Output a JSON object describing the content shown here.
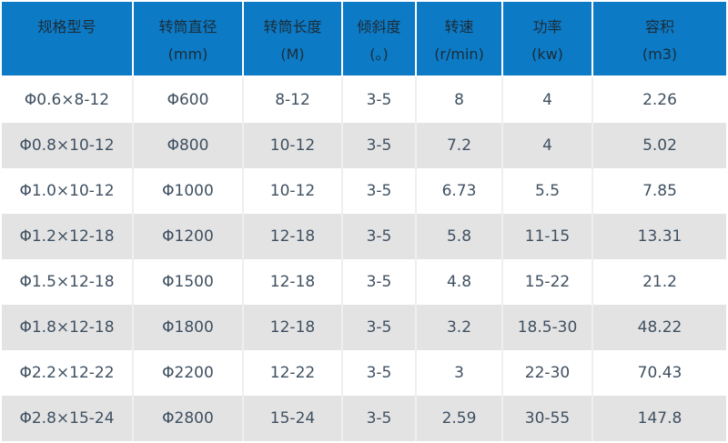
{
  "chart_data": {
    "type": "table",
    "columns": [
      {
        "label": "规格型号",
        "unit": ""
      },
      {
        "label": "转筒直径",
        "unit": "(mm)"
      },
      {
        "label": "转筒长度",
        "unit": "(M)"
      },
      {
        "label": "倾斜度",
        "unit": "(。)"
      },
      {
        "label": "转速",
        "unit": "(r/min)"
      },
      {
        "label": "功率",
        "unit": "(kw)"
      },
      {
        "label": "容积",
        "unit": "(m3)"
      }
    ],
    "rows": [
      [
        "Φ0.6×8-12",
        "Φ600",
        "8-12",
        "3-5",
        "8",
        "4",
        "2.26"
      ],
      [
        "Φ0.8×10-12",
        "Φ800",
        "10-12",
        "3-5",
        "7.2",
        "4",
        "5.02"
      ],
      [
        "Φ1.0×10-12",
        "Φ1000",
        "10-12",
        "3-5",
        "6.73",
        "5.5",
        "7.85"
      ],
      [
        "Φ1.2×12-18",
        "Φ1200",
        "12-18",
        "3-5",
        "5.8",
        "11-15",
        "13.31"
      ],
      [
        "Φ1.5×12-18",
        "Φ1500",
        "12-18",
        "3-5",
        "4.8",
        "15-22",
        "21.2"
      ],
      [
        "Φ1.8×12-18",
        "Φ1800",
        "12-18",
        "3-5",
        "3.2",
        "18.5-30",
        "48.22"
      ],
      [
        "Φ2.2×12-22",
        "Φ2200",
        "12-22",
        "3-5",
        "3",
        "22-30",
        "70.43"
      ],
      [
        "Φ2.8×15-24",
        "Φ2800",
        "15-24",
        "3-5",
        "2.59",
        "30-55",
        "147.8"
      ]
    ]
  },
  "styles": {
    "header_bg": "#0d7ac5",
    "header_text": "#1b2c38",
    "body_text": "#3f5061",
    "row_alt_bg": "#e3e3e3",
    "grid_line": "#efefef"
  }
}
